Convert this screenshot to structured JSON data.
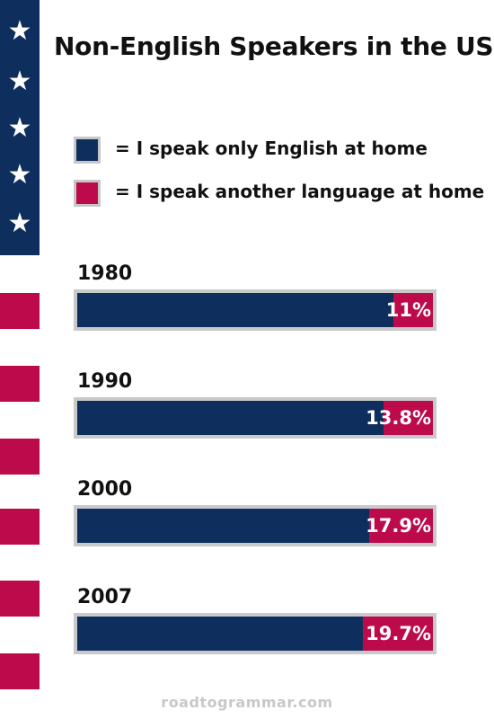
{
  "title": "Non-English Speakers in the US",
  "legend": [
    {
      "label": "= I speak only English at home",
      "color": "#0e2f5e"
    },
    {
      "label": "= I speak another language at home",
      "color": "#bd0a4b"
    }
  ],
  "icons": {
    "flag_star": "★"
  },
  "footer": "roadtogrammar.com",
  "chart_data": {
    "type": "bar",
    "orientation": "horizontal",
    "stacked": true,
    "categories": [
      "1980",
      "1990",
      "2000",
      "2007"
    ],
    "series": [
      {
        "name": "I speak only English at home",
        "color": "#0e2f5e",
        "values": [
          89,
          86.2,
          82.1,
          80.3
        ]
      },
      {
        "name": "I speak another language at home",
        "color": "#bd0a4b",
        "values": [
          11,
          13.8,
          17.9,
          19.7
        ]
      }
    ],
    "data_labels": [
      "11%",
      "13.8%",
      "17.9%",
      "19.7%"
    ],
    "xlim": [
      0,
      100
    ],
    "grid": false,
    "legend_position": "top"
  }
}
